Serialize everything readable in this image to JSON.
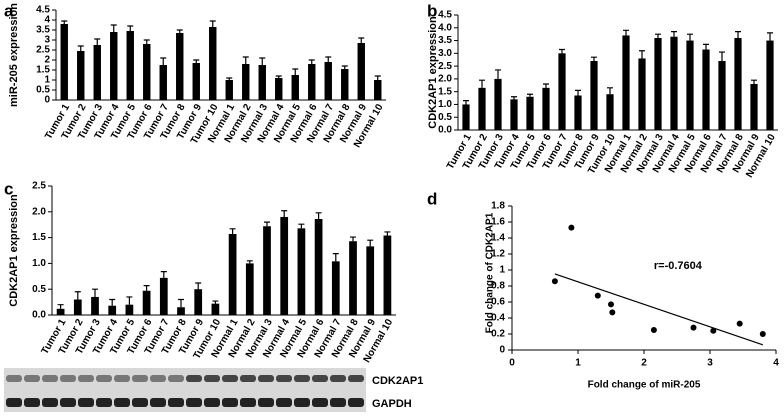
{
  "chart_data": [
    {
      "type": "bar",
      "panel": "a",
      "ylabel": "miR-205 expression",
      "categories": [
        "Tumor 1",
        "Tumor 2",
        "Tumor 3",
        "Tumor 4",
        "Tumor 5",
        "Tumor 6",
        "Tumor 7",
        "Tumor 8",
        "Tumor 9",
        "Tumor 10",
        "Normal 1",
        "Normal 2",
        "Normal 3",
        "Normal 4",
        "Normal 5",
        "Normal 6",
        "Normal 7",
        "Normal 8",
        "Normal 9",
        "Normal 10"
      ],
      "values": [
        3.8,
        2.45,
        2.75,
        3.4,
        3.45,
        2.8,
        1.75,
        3.35,
        1.85,
        3.65,
        1.0,
        1.8,
        1.75,
        1.1,
        1.25,
        1.8,
        1.9,
        1.55,
        2.85,
        1.0
      ],
      "errors": [
        0.15,
        0.25,
        0.3,
        0.35,
        0.25,
        0.2,
        0.35,
        0.15,
        0.15,
        0.3,
        0.1,
        0.35,
        0.35,
        0.1,
        0.3,
        0.2,
        0.25,
        0.15,
        0.25,
        0.2
      ],
      "color": "#000000",
      "ylim": [
        0,
        4.5
      ],
      "yticks": [
        0,
        0.5,
        1,
        1.5,
        2,
        2.5,
        3,
        3.5,
        4,
        4.5
      ]
    },
    {
      "type": "bar",
      "panel": "b",
      "ylabel": "CDK2AP1 expression",
      "categories": [
        "Tumor 1",
        "Tumor 2",
        "Tumor 3",
        "Tumor 4",
        "Tumor 5",
        "Tumor 6",
        "Tumor 7",
        "Tumor 8",
        "Tumor 9",
        "Tumor 10",
        "Normal 1",
        "Normal 2",
        "Normal 3",
        "Normal 4",
        "Normal 5",
        "Normal 6",
        "Normal 7",
        "Normal 8",
        "Normal 9",
        "Normal 10"
      ],
      "values": [
        1.0,
        1.65,
        2.0,
        1.2,
        1.3,
        1.65,
        3.0,
        1.35,
        2.7,
        1.4,
        3.7,
        2.8,
        3.6,
        3.65,
        3.5,
        3.15,
        2.7,
        3.6,
        1.8,
        3.5
      ],
      "errors": [
        0.15,
        0.3,
        0.35,
        0.1,
        0.1,
        0.15,
        0.15,
        0.2,
        0.15,
        0.25,
        0.2,
        0.3,
        0.15,
        0.2,
        0.25,
        0.2,
        0.35,
        0.25,
        0.15,
        0.3
      ],
      "color": "#000000",
      "ylim": [
        0,
        4.5
      ],
      "yticks": [
        {
          "value": 0,
          "label": "0.0"
        },
        0.5,
        {
          "value": 1,
          "label": "1.0"
        },
        1.5,
        {
          "value": 2,
          "label": "2.0"
        },
        2.5,
        {
          "value": 3,
          "label": "3.0"
        },
        3.5,
        {
          "value": 4,
          "label": "4.0"
        },
        4.5
      ]
    },
    {
      "type": "bar",
      "panel": "c",
      "ylabel": "CDK2AP1 expression",
      "categories": [
        "Tumor 1",
        "Tumor 2",
        "Tumor 3",
        "Tumor 4",
        "Tumor 5",
        "Tumor 6",
        "Tumor 7",
        "Tumor 8",
        "Tumor 9",
        "Tumor 10",
        "Normal 1",
        "Normal 2",
        "Normal 3",
        "Normal 4",
        "Normal 5",
        "Normal 6",
        "Normal 7",
        "Normal 8",
        "Normal 9",
        "Normal 10"
      ],
      "values": [
        0.12,
        0.3,
        0.35,
        0.18,
        0.2,
        0.47,
        0.72,
        0.15,
        0.5,
        0.22,
        1.57,
        1.0,
        1.72,
        1.9,
        1.68,
        1.86,
        1.04,
        1.43,
        1.33,
        1.54
      ],
      "errors": [
        0.08,
        0.15,
        0.15,
        0.12,
        0.15,
        0.1,
        0.12,
        0.15,
        0.12,
        0.05,
        0.1,
        0.05,
        0.08,
        0.12,
        0.08,
        0.12,
        0.15,
        0.08,
        0.12,
        0.07
      ],
      "color": "#000000",
      "ylim": [
        0,
        2.5
      ],
      "yticks": [
        {
          "value": 0,
          "label": "0.0"
        },
        0.5,
        {
          "value": 1,
          "label": "1.0"
        },
        1.5,
        {
          "value": 2,
          "label": "2.0"
        },
        2.5
      ]
    },
    {
      "type": "scatter",
      "panel": "d",
      "xlabel": "Fold change of miR-205",
      "ylabel": "Fold change of CDK2AP1",
      "annotation": "r=-0.7604",
      "x": [
        0.65,
        0.9,
        1.3,
        1.5,
        1.52,
        2.15,
        2.75,
        3.05,
        3.45,
        3.8
      ],
      "y": [
        0.86,
        1.53,
        0.68,
        0.57,
        0.47,
        0.25,
        0.28,
        0.24,
        0.33,
        0.2
      ],
      "color": "#000000",
      "xlim": [
        0,
        4
      ],
      "xticks": [
        0,
        1,
        2,
        3,
        4
      ],
      "ylim": [
        0,
        1.8
      ],
      "yticks": [
        0,
        0.2,
        0.4,
        0.6,
        0.8,
        1,
        1.2,
        1.4,
        1.6,
        1.8
      ]
    }
  ],
  "blot": {
    "labels": [
      "CDK2AP1",
      "GAPDH"
    ]
  }
}
